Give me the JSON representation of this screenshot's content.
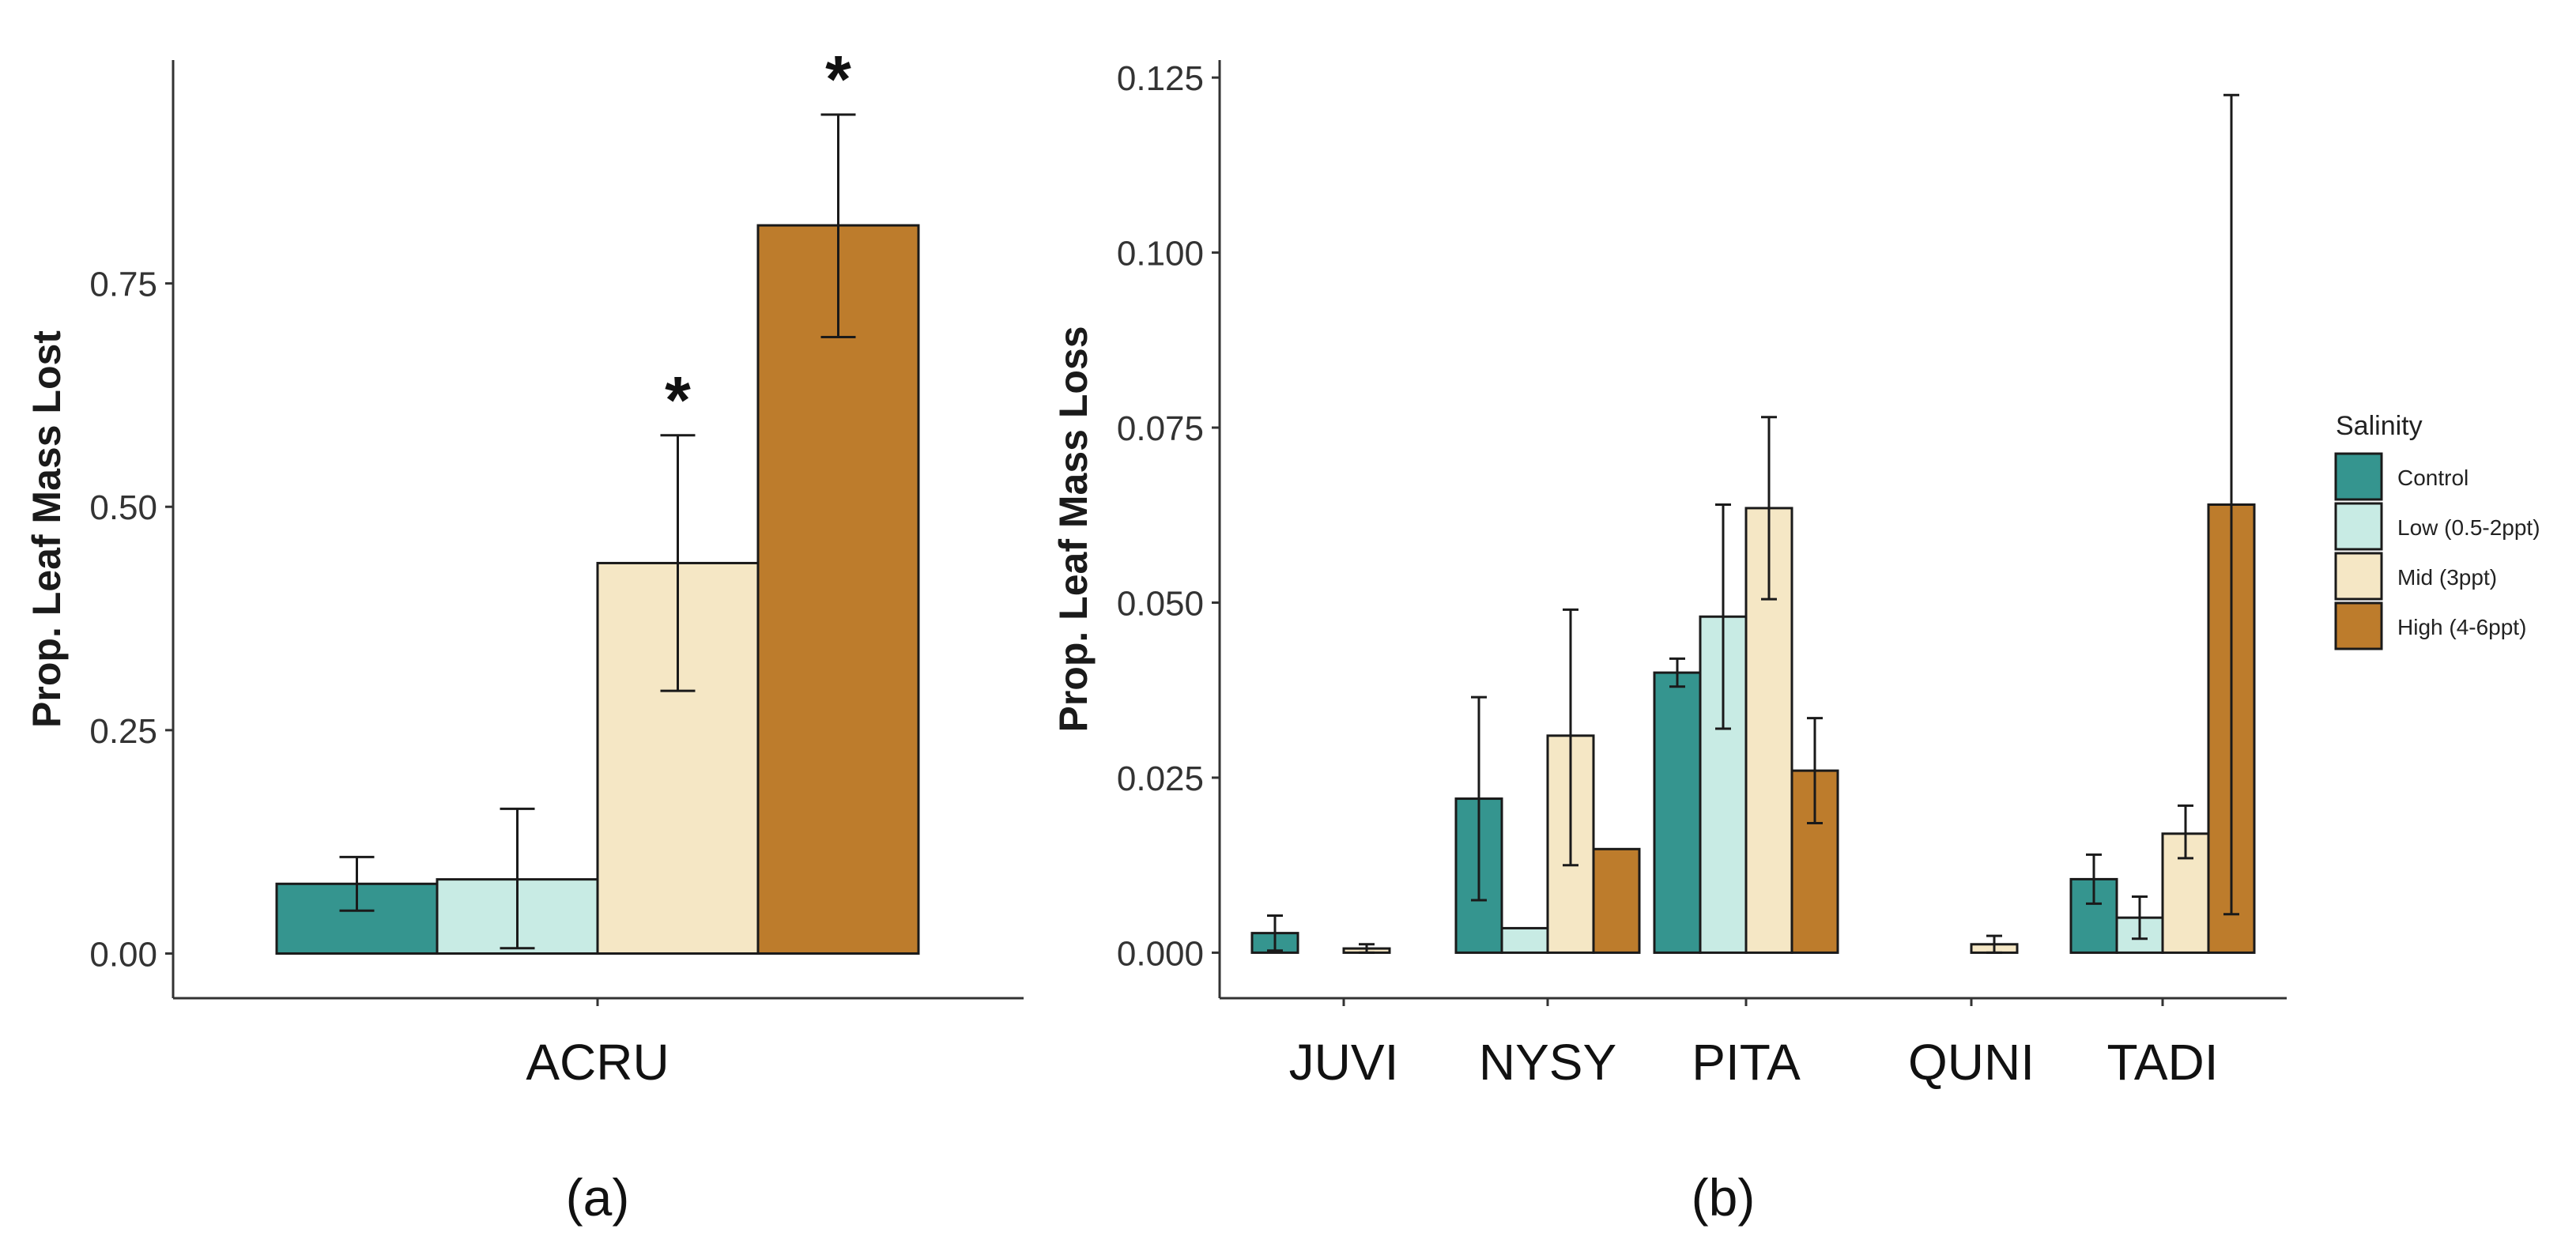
{
  "colors": {
    "control": "#35958f",
    "low": "#c8ebe4",
    "mid": "#f5e7c5",
    "high": "#bd7c2c",
    "axis": "#333333",
    "text": "#1a1a1a"
  },
  "chart_data": [
    {
      "type": "bar",
      "panel_label": "(a)",
      "ylabel": "Prop. Leaf Mass Lost",
      "xlabel": "",
      "ylim": [
        -0.05,
        1.0
      ],
      "yticks": [
        0.0,
        0.25,
        0.5,
        0.75
      ],
      "ytick_labels": [
        "0.00",
        "0.25",
        "0.50",
        "0.75"
      ],
      "categories": [
        "ACRU"
      ],
      "series": [
        {
          "name": "Control",
          "values": [
            0.078
          ],
          "err_low": [
            0.048
          ],
          "err_high": [
            0.108
          ],
          "annotation": [
            ""
          ]
        },
        {
          "name": "Low (0.5-2ppt)",
          "values": [
            0.083
          ],
          "err_low": [
            0.006
          ],
          "err_high": [
            0.162
          ],
          "annotation": [
            ""
          ]
        },
        {
          "name": "Mid (3ppt)",
          "values": [
            0.437
          ],
          "err_low": [
            0.294
          ],
          "err_high": [
            0.58
          ],
          "annotation": [
            "*"
          ]
        },
        {
          "name": "High (4-6ppt)",
          "values": [
            0.815
          ],
          "err_low": [
            0.69
          ],
          "err_high": [
            0.939
          ],
          "annotation": [
            "*"
          ]
        }
      ],
      "grid": false
    },
    {
      "type": "bar",
      "panel_label": "(b)",
      "ylabel": "Prop. Leaf Mass Loss",
      "xlabel": "",
      "ylim": [
        -0.0065,
        0.1275
      ],
      "yticks": [
        0.0,
        0.025,
        0.05,
        0.075,
        0.1,
        0.125
      ],
      "ytick_labels": [
        "0.000",
        "0.025",
        "0.050",
        "0.075",
        "0.100",
        "0.125"
      ],
      "categories": [
        "JUVI",
        "NYSY",
        "PITA",
        "QUNI",
        "TADI"
      ],
      "series": [
        {
          "name": "Control",
          "values": [
            0.0028,
            0.022,
            0.04,
            0.0,
            0.0105
          ],
          "err_low": [
            0.0003,
            0.0075,
            0.038,
            null,
            0.007
          ],
          "err_high": [
            0.0053,
            0.0365,
            0.042,
            null,
            0.014
          ]
        },
        {
          "name": "Low (0.5-2ppt)",
          "values": [
            0.0,
            0.0035,
            0.048,
            0.0,
            0.005
          ],
          "err_low": [
            null,
            null,
            0.032,
            null,
            0.002
          ],
          "err_high": [
            null,
            null,
            0.064,
            null,
            0.008
          ]
        },
        {
          "name": "Mid (3ppt)",
          "values": [
            0.0006,
            0.031,
            0.0635,
            0.0012,
            0.017
          ],
          "err_low": [
            0.0,
            0.0125,
            0.0505,
            0.0,
            0.0135
          ],
          "err_high": [
            0.0012,
            0.049,
            0.0765,
            0.0024,
            0.021
          ]
        },
        {
          "name": "High (4-6ppt)",
          "values": [
            0.0,
            0.0148,
            0.026,
            0.0,
            0.064
          ],
          "err_low": [
            null,
            null,
            0.0185,
            null,
            0.0055
          ],
          "err_high": [
            null,
            null,
            0.0335,
            null,
            0.1225
          ]
        }
      ],
      "legend": {
        "title": "Salinity",
        "placement": "right",
        "entries": [
          "Control",
          "Low (0.5-2ppt)",
          "Mid (3ppt)",
          "High (4-6ppt)"
        ]
      },
      "grid": false
    }
  ]
}
